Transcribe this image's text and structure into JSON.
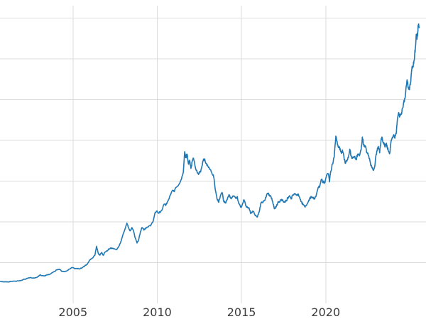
{
  "chart_data": {
    "type": "line",
    "title": "",
    "xlabel": "",
    "ylabel": "",
    "legend": "none",
    "grid": true,
    "background": "#ffffff",
    "line_color": "#1f77b4",
    "grid_color": "#dcdcdc",
    "tick_label_color": "#3b3b3b",
    "xlim": [
      2000.67,
      2025.95
    ],
    "ylim": [
      0,
      3650
    ],
    "x_ticks": [
      {
        "value": 2005,
        "label": "2005"
      },
      {
        "value": 2010,
        "label": "2010"
      },
      {
        "value": 2015,
        "label": "2015"
      },
      {
        "value": 2020,
        "label": "2020"
      }
    ],
    "y_gridlines": [
      500,
      1000,
      1500,
      2000,
      2500,
      3000,
      3500
    ],
    "points": [
      [
        2000.7,
        268
      ],
      [
        2000.85,
        264
      ],
      [
        2001.0,
        266
      ],
      [
        2001.15,
        262
      ],
      [
        2001.3,
        268
      ],
      [
        2001.45,
        273
      ],
      [
        2001.6,
        272
      ],
      [
        2001.75,
        277
      ],
      [
        2001.9,
        281
      ],
      [
        2002.05,
        293
      ],
      [
        2002.2,
        300
      ],
      [
        2002.35,
        311
      ],
      [
        2002.5,
        318
      ],
      [
        2002.65,
        310
      ],
      [
        2002.8,
        316
      ],
      [
        2002.95,
        330
      ],
      [
        2003.05,
        352
      ],
      [
        2003.15,
        340
      ],
      [
        2003.3,
        336
      ],
      [
        2003.45,
        348
      ],
      [
        2003.6,
        356
      ],
      [
        2003.75,
        375
      ],
      [
        2003.9,
        390
      ],
      [
        2004.05,
        412
      ],
      [
        2004.2,
        420
      ],
      [
        2004.35,
        392
      ],
      [
        2004.5,
        388
      ],
      [
        2004.65,
        400
      ],
      [
        2004.8,
        422
      ],
      [
        2004.95,
        440
      ],
      [
        2005.1,
        426
      ],
      [
        2005.25,
        430
      ],
      [
        2005.4,
        422
      ],
      [
        2005.55,
        438
      ],
      [
        2005.7,
        460
      ],
      [
        2005.85,
        480
      ],
      [
        2006.0,
        535
      ],
      [
        2006.15,
        555
      ],
      [
        2006.3,
        590
      ],
      [
        2006.4,
        700
      ],
      [
        2006.5,
        615
      ],
      [
        2006.6,
        590
      ],
      [
        2006.7,
        625
      ],
      [
        2006.8,
        590
      ],
      [
        2006.9,
        630
      ],
      [
        2007.0,
        645
      ],
      [
        2007.15,
        665
      ],
      [
        2007.3,
        680
      ],
      [
        2007.45,
        670
      ],
      [
        2007.6,
        660
      ],
      [
        2007.75,
        710
      ],
      [
        2007.85,
        760
      ],
      [
        2008.0,
        865
      ],
      [
        2008.1,
        920
      ],
      [
        2008.2,
        985
      ],
      [
        2008.3,
        930
      ],
      [
        2008.4,
        890
      ],
      [
        2008.5,
        930
      ],
      [
        2008.6,
        880
      ],
      [
        2008.7,
        800
      ],
      [
        2008.8,
        740
      ],
      [
        2008.9,
        780
      ],
      [
        2009.0,
        875
      ],
      [
        2009.1,
        930
      ],
      [
        2009.2,
        900
      ],
      [
        2009.3,
        925
      ],
      [
        2009.45,
        935
      ],
      [
        2009.6,
        950
      ],
      [
        2009.75,
        1000
      ],
      [
        2009.85,
        1095
      ],
      [
        2009.95,
        1130
      ],
      [
        2010.1,
        1105
      ],
      [
        2010.25,
        1140
      ],
      [
        2010.4,
        1215
      ],
      [
        2010.5,
        1200
      ],
      [
        2010.6,
        1245
      ],
      [
        2010.75,
        1320
      ],
      [
        2010.9,
        1385
      ],
      [
        2011.0,
        1370
      ],
      [
        2011.1,
        1420
      ],
      [
        2011.25,
        1445
      ],
      [
        2011.4,
        1510
      ],
      [
        2011.55,
        1610
      ],
      [
        2011.63,
        1860
      ],
      [
        2011.7,
        1790
      ],
      [
        2011.77,
        1830
      ],
      [
        2011.85,
        1710
      ],
      [
        2011.93,
        1755
      ],
      [
        2012.0,
        1655
      ],
      [
        2012.08,
        1740
      ],
      [
        2012.15,
        1780
      ],
      [
        2012.25,
        1680
      ],
      [
        2012.35,
        1630
      ],
      [
        2012.45,
        1580
      ],
      [
        2012.55,
        1610
      ],
      [
        2012.65,
        1680
      ],
      [
        2012.75,
        1770
      ],
      [
        2012.85,
        1740
      ],
      [
        2012.95,
        1690
      ],
      [
        2013.05,
        1665
      ],
      [
        2013.15,
        1640
      ],
      [
        2013.25,
        1590
      ],
      [
        2013.35,
        1550
      ],
      [
        2013.45,
        1390
      ],
      [
        2013.55,
        1280
      ],
      [
        2013.65,
        1240
      ],
      [
        2013.75,
        1320
      ],
      [
        2013.85,
        1360
      ],
      [
        2013.95,
        1250
      ],
      [
        2014.05,
        1230
      ],
      [
        2014.15,
        1270
      ],
      [
        2014.25,
        1330
      ],
      [
        2014.35,
        1290
      ],
      [
        2014.45,
        1300
      ],
      [
        2014.55,
        1320
      ],
      [
        2014.65,
        1290
      ],
      [
        2014.75,
        1310
      ],
      [
        2014.85,
        1220
      ],
      [
        2014.95,
        1180
      ],
      [
        2015.05,
        1210
      ],
      [
        2015.15,
        1270
      ],
      [
        2015.25,
        1200
      ],
      [
        2015.35,
        1180
      ],
      [
        2015.45,
        1170
      ],
      [
        2015.55,
        1100
      ],
      [
        2015.65,
        1130
      ],
      [
        2015.75,
        1110
      ],
      [
        2015.85,
        1080
      ],
      [
        2015.95,
        1060
      ],
      [
        2016.05,
        1120
      ],
      [
        2016.15,
        1230
      ],
      [
        2016.25,
        1240
      ],
      [
        2016.35,
        1260
      ],
      [
        2016.45,
        1300
      ],
      [
        2016.55,
        1350
      ],
      [
        2016.65,
        1330
      ],
      [
        2016.75,
        1310
      ],
      [
        2016.85,
        1250
      ],
      [
        2016.95,
        1160
      ],
      [
        2017.05,
        1180
      ],
      [
        2017.15,
        1230
      ],
      [
        2017.25,
        1250
      ],
      [
        2017.35,
        1270
      ],
      [
        2017.45,
        1260
      ],
      [
        2017.55,
        1240
      ],
      [
        2017.65,
        1260
      ],
      [
        2017.75,
        1290
      ],
      [
        2017.85,
        1320
      ],
      [
        2017.95,
        1280
      ],
      [
        2018.05,
        1330
      ],
      [
        2018.15,
        1345
      ],
      [
        2018.25,
        1330
      ],
      [
        2018.35,
        1340
      ],
      [
        2018.45,
        1300
      ],
      [
        2018.55,
        1250
      ],
      [
        2018.65,
        1210
      ],
      [
        2018.75,
        1190
      ],
      [
        2018.85,
        1200
      ],
      [
        2018.95,
        1240
      ],
      [
        2019.05,
        1290
      ],
      [
        2019.15,
        1310
      ],
      [
        2019.25,
        1290
      ],
      [
        2019.35,
        1280
      ],
      [
        2019.45,
        1340
      ],
      [
        2019.55,
        1420
      ],
      [
        2019.65,
        1440
      ],
      [
        2019.75,
        1520
      ],
      [
        2019.85,
        1490
      ],
      [
        2019.95,
        1480
      ],
      [
        2020.05,
        1570
      ],
      [
        2020.15,
        1590
      ],
      [
        2020.22,
        1490
      ],
      [
        2020.3,
        1620
      ],
      [
        2020.4,
        1710
      ],
      [
        2020.5,
        1790
      ],
      [
        2020.6,
        2050
      ],
      [
        2020.7,
        1940
      ],
      [
        2020.78,
        1920
      ],
      [
        2020.85,
        1900
      ],
      [
        2020.93,
        1840
      ],
      [
        2021.0,
        1870
      ],
      [
        2021.08,
        1800
      ],
      [
        2021.15,
        1720
      ],
      [
        2021.25,
        1745
      ],
      [
        2021.35,
        1790
      ],
      [
        2021.43,
        1890
      ],
      [
        2021.5,
        1810
      ],
      [
        2021.6,
        1780
      ],
      [
        2021.7,
        1800
      ],
      [
        2021.8,
        1760
      ],
      [
        2021.9,
        1830
      ],
      [
        2022.0,
        1810
      ],
      [
        2022.1,
        1880
      ],
      [
        2022.17,
        2040
      ],
      [
        2022.25,
        1950
      ],
      [
        2022.35,
        1930
      ],
      [
        2022.45,
        1850
      ],
      [
        2022.55,
        1810
      ],
      [
        2022.65,
        1720
      ],
      [
        2022.75,
        1660
      ],
      [
        2022.83,
        1630
      ],
      [
        2022.9,
        1670
      ],
      [
        2022.97,
        1800
      ],
      [
        2023.05,
        1870
      ],
      [
        2023.12,
        1925
      ],
      [
        2023.2,
        1845
      ],
      [
        2023.28,
        1995
      ],
      [
        2023.35,
        2030
      ],
      [
        2023.43,
        1960
      ],
      [
        2023.5,
        1930
      ],
      [
        2023.58,
        1955
      ],
      [
        2023.65,
        1910
      ],
      [
        2023.73,
        1865
      ],
      [
        2023.8,
        1840
      ],
      [
        2023.88,
        1995
      ],
      [
        2023.95,
        2035
      ],
      [
        2024.02,
        2060
      ],
      [
        2024.1,
        2025
      ],
      [
        2024.18,
        2080
      ],
      [
        2024.25,
        2250
      ],
      [
        2024.33,
        2340
      ],
      [
        2024.4,
        2300
      ],
      [
        2024.48,
        2330
      ],
      [
        2024.55,
        2390
      ],
      [
        2024.63,
        2470
      ],
      [
        2024.7,
        2510
      ],
      [
        2024.78,
        2670
      ],
      [
        2024.83,
        2740
      ],
      [
        2024.9,
        2650
      ],
      [
        2024.97,
        2620
      ],
      [
        2025.03,
        2700
      ],
      [
        2025.1,
        2860
      ],
      [
        2025.16,
        2900
      ],
      [
        2025.22,
        2940
      ],
      [
        2025.28,
        3060
      ],
      [
        2025.33,
        3150
      ],
      [
        2025.38,
        3300
      ],
      [
        2025.42,
        3240
      ],
      [
        2025.46,
        3330
      ],
      [
        2025.5,
        3420
      ],
      [
        2025.55,
        3380
      ]
    ]
  }
}
